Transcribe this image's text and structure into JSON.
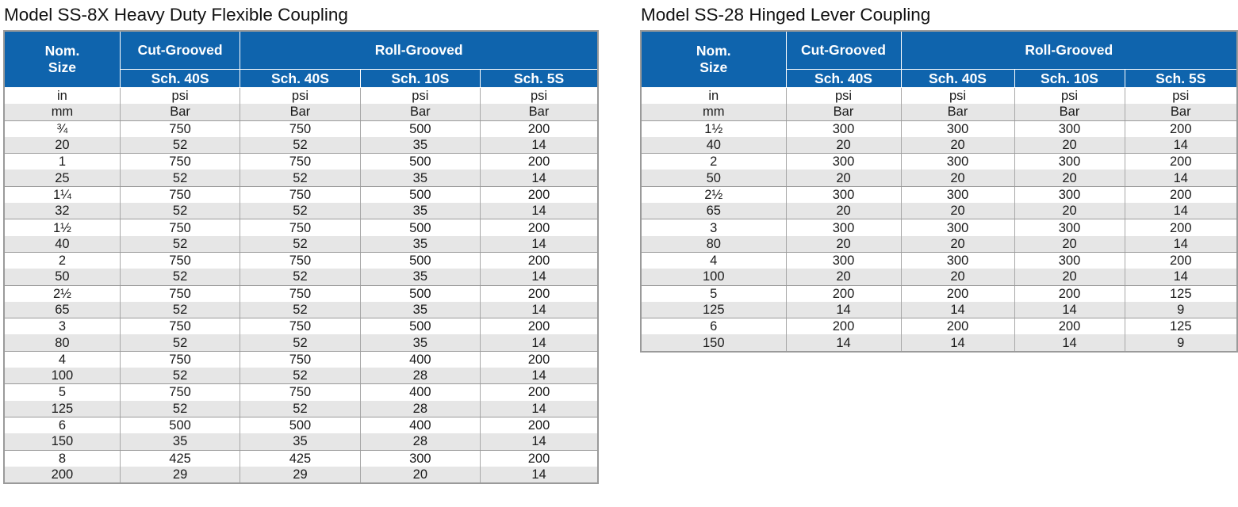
{
  "left": {
    "title": "Model SS-8X Heavy Duty Flexible Coupling",
    "header": {
      "nom_size": [
        "Nom.",
        "Size"
      ],
      "cut_grooved": "Cut-Grooved",
      "roll_grooved": "Roll-Grooved",
      "schedules": [
        "Sch. 40S",
        "Sch. 40S",
        "Sch. 10S",
        "Sch. 5S"
      ]
    },
    "rows": [
      [
        "in",
        "psi",
        "psi",
        "psi",
        "psi"
      ],
      [
        "mm",
        "Bar",
        "Bar",
        "Bar",
        "Bar"
      ],
      [
        "¾",
        "750",
        "750",
        "500",
        "200"
      ],
      [
        "20",
        "52",
        "52",
        "35",
        "14"
      ],
      [
        "1",
        "750",
        "750",
        "500",
        "200"
      ],
      [
        "25",
        "52",
        "52",
        "35",
        "14"
      ],
      [
        "1¼",
        "750",
        "750",
        "500",
        "200"
      ],
      [
        "32",
        "52",
        "52",
        "35",
        "14"
      ],
      [
        "1½",
        "750",
        "750",
        "500",
        "200"
      ],
      [
        "40",
        "52",
        "52",
        "35",
        "14"
      ],
      [
        "2",
        "750",
        "750",
        "500",
        "200"
      ],
      [
        "50",
        "52",
        "52",
        "35",
        "14"
      ],
      [
        "2½",
        "750",
        "750",
        "500",
        "200"
      ],
      [
        "65",
        "52",
        "52",
        "35",
        "14"
      ],
      [
        "3",
        "750",
        "750",
        "500",
        "200"
      ],
      [
        "80",
        "52",
        "52",
        "35",
        "14"
      ],
      [
        "4",
        "750",
        "750",
        "400",
        "200"
      ],
      [
        "100",
        "52",
        "52",
        "28",
        "14"
      ],
      [
        "5",
        "750",
        "750",
        "400",
        "200"
      ],
      [
        "125",
        "52",
        "52",
        "28",
        "14"
      ],
      [
        "6",
        "500",
        "500",
        "400",
        "200"
      ],
      [
        "150",
        "35",
        "35",
        "28",
        "14"
      ],
      [
        "8",
        "425",
        "425",
        "300",
        "200"
      ],
      [
        "200",
        "29",
        "29",
        "20",
        "14"
      ]
    ]
  },
  "right": {
    "title": "Model SS-28 Hinged Lever Coupling",
    "header": {
      "nom_size": [
        "Nom.",
        "Size"
      ],
      "cut_grooved": "Cut-Grooved",
      "roll_grooved": "Roll-Grooved",
      "schedules": [
        "Sch. 40S",
        "Sch. 40S",
        "Sch. 10S",
        "Sch. 5S"
      ]
    },
    "rows": [
      [
        "in",
        "psi",
        "psi",
        "psi",
        "psi"
      ],
      [
        "mm",
        "Bar",
        "Bar",
        "Bar",
        "Bar"
      ],
      [
        "1½",
        "300",
        "300",
        "300",
        "200"
      ],
      [
        "40",
        "20",
        "20",
        "20",
        "14"
      ],
      [
        "2",
        "300",
        "300",
        "300",
        "200"
      ],
      [
        "50",
        "20",
        "20",
        "20",
        "14"
      ],
      [
        "2½",
        "300",
        "300",
        "300",
        "200"
      ],
      [
        "65",
        "20",
        "20",
        "20",
        "14"
      ],
      [
        "3",
        "300",
        "300",
        "300",
        "200"
      ],
      [
        "80",
        "20",
        "20",
        "20",
        "14"
      ],
      [
        "4",
        "300",
        "300",
        "300",
        "200"
      ],
      [
        "100",
        "20",
        "20",
        "20",
        "14"
      ],
      [
        "5",
        "200",
        "200",
        "200",
        "125"
      ],
      [
        "125",
        "14",
        "14",
        "14",
        "9"
      ],
      [
        "6",
        "200",
        "200",
        "200",
        "125"
      ],
      [
        "150",
        "14",
        "14",
        "14",
        "9"
      ]
    ]
  },
  "colors": {
    "header_bg": "#0f64ad",
    "header_text": "#ffffff",
    "stripe_bg": "#e6e6e6",
    "border": "#9a9a9a"
  }
}
